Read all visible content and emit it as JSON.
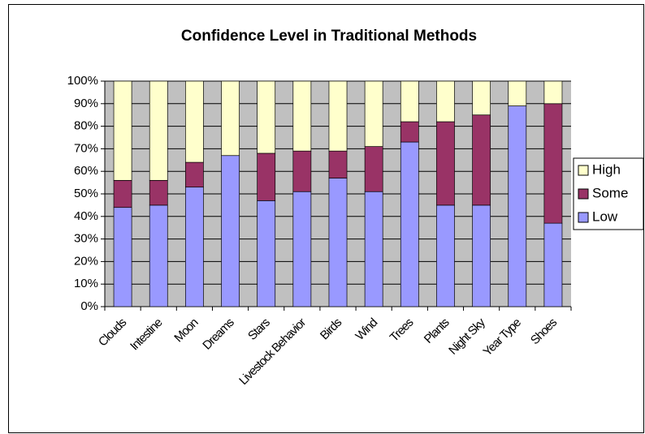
{
  "chart_data": {
    "type": "stacked_bar_100",
    "title": "Confidence Level in Traditional Methods",
    "categories": [
      "Clouds",
      "Intestine",
      "Moon",
      "Dreams",
      "Stars",
      "Livestock Behavior",
      "Birds",
      "Wind",
      "Trees",
      "Plants",
      "Night Sky",
      "Year Type",
      "Shoes"
    ],
    "series": [
      {
        "name": "Low",
        "color": "#9999ff",
        "values": [
          44,
          45,
          53,
          67,
          47,
          51,
          57,
          51,
          73,
          45,
          45,
          89,
          37
        ]
      },
      {
        "name": "Some",
        "color": "#993366",
        "values": [
          12,
          11,
          11,
          0,
          21,
          18,
          12,
          20,
          9,
          37,
          40,
          0,
          53
        ]
      },
      {
        "name": "High",
        "color": "#ffffcc",
        "values": [
          44,
          44,
          36,
          33,
          32,
          31,
          31,
          29,
          18,
          18,
          15,
          11,
          10
        ]
      }
    ],
    "ylim": [
      0,
      100
    ],
    "yticks": [
      {
        "value": 0,
        "label": "0%"
      },
      {
        "value": 10,
        "label": "10%"
      },
      {
        "value": 20,
        "label": "20%"
      },
      {
        "value": 30,
        "label": "30%"
      },
      {
        "value": 40,
        "label": "40%"
      },
      {
        "value": 50,
        "label": "50%"
      },
      {
        "value": 60,
        "label": "60%"
      },
      {
        "value": 70,
        "label": "70%"
      },
      {
        "value": 80,
        "label": "80%"
      },
      {
        "value": 90,
        "label": "90%"
      },
      {
        "value": 100,
        "label": "100%"
      }
    ],
    "grid": true,
    "legend": "right"
  }
}
